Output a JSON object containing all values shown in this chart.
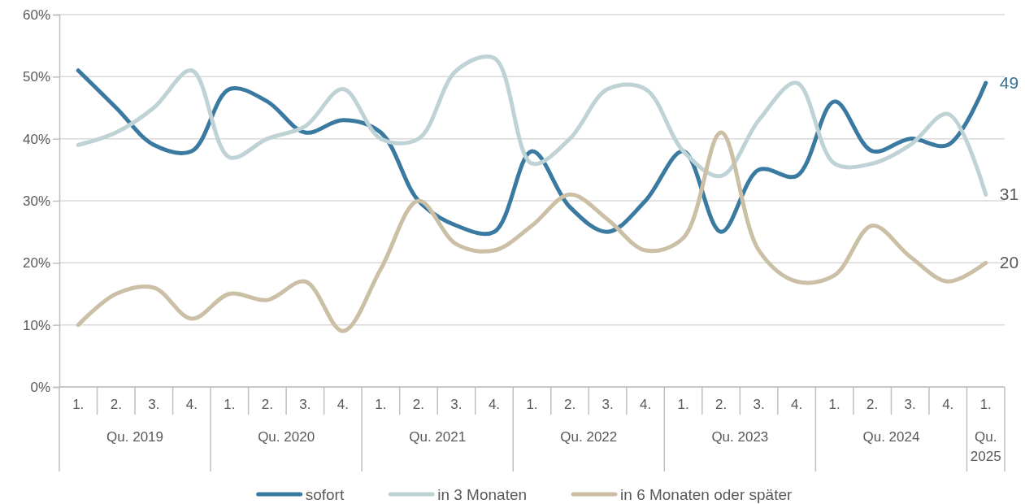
{
  "chart_data": {
    "type": "line",
    "categories": [
      "1.",
      "2.",
      "3.",
      "4.",
      "1.",
      "2.",
      "3.",
      "4.",
      "1.",
      "2.",
      "3.",
      "4.",
      "1.",
      "2.",
      "3.",
      "4.",
      "1.",
      "2.",
      "3.",
      "4.",
      "1.",
      "2.",
      "3.",
      "4.",
      "1."
    ],
    "series": [
      {
        "name": "sofort",
        "color": "#3a7aa0",
        "values": [
          51,
          45,
          39,
          38,
          48,
          46,
          41,
          43,
          41,
          30,
          26,
          25,
          38,
          29,
          25,
          30,
          38,
          25,
          35,
          34,
          46,
          38,
          40,
          39,
          49
        ],
        "value_labels": [
          null,
          null,
          null,
          null,
          null,
          null,
          null,
          null,
          null,
          null,
          null,
          null,
          null,
          null,
          null,
          null,
          null,
          null,
          null,
          null,
          null,
          null,
          null,
          null,
          "49"
        ]
      },
      {
        "name": "in 3 Monaten",
        "color": "#bfd2d6",
        "values": [
          39,
          41,
          45,
          51,
          37,
          40,
          42,
          48,
          40,
          40,
          51,
          53,
          36,
          40,
          48,
          48,
          38,
          34,
          43,
          49,
          36,
          36,
          39,
          44,
          31
        ],
        "value_labels": [
          null,
          null,
          null,
          null,
          null,
          null,
          null,
          null,
          null,
          null,
          null,
          null,
          null,
          null,
          null,
          null,
          null,
          null,
          null,
          null,
          null,
          null,
          null,
          null,
          "31"
        ]
      },
      {
        "name": "in 6 Monaten oder später",
        "color": "#cbbfa5",
        "values": [
          10,
          15,
          16,
          11,
          15,
          14,
          17,
          9,
          19,
          30,
          23,
          22,
          26,
          31,
          27,
          22,
          24,
          41,
          22,
          17,
          18,
          26,
          21,
          17,
          20
        ],
        "value_labels": [
          null,
          null,
          null,
          null,
          null,
          null,
          null,
          null,
          null,
          null,
          null,
          null,
          null,
          null,
          null,
          null,
          null,
          null,
          null,
          null,
          null,
          null,
          null,
          null,
          "20"
        ]
      }
    ],
    "annotations": [
      "Qu. 2019",
      "Qu. 2020",
      "Qu. 2021",
      "Qu. 2022",
      "Qu. 2023",
      "Qu. 2024",
      "Qu. 2025"
    ],
    "ylim": [
      0,
      60
    ],
    "yticks": [
      {
        "value": 0,
        "label": "0%"
      },
      {
        "value": 10,
        "label": "10%"
      },
      {
        "value": 20,
        "label": "20%"
      },
      {
        "value": 30,
        "label": "30%"
      },
      {
        "value": 40,
        "label": "40%"
      },
      {
        "value": 50,
        "label": "50%"
      },
      {
        "value": 60,
        "label": "60%"
      }
    ],
    "grid": "y",
    "legend": "bottom",
    "marker": "none",
    "line_style": "solid"
  }
}
